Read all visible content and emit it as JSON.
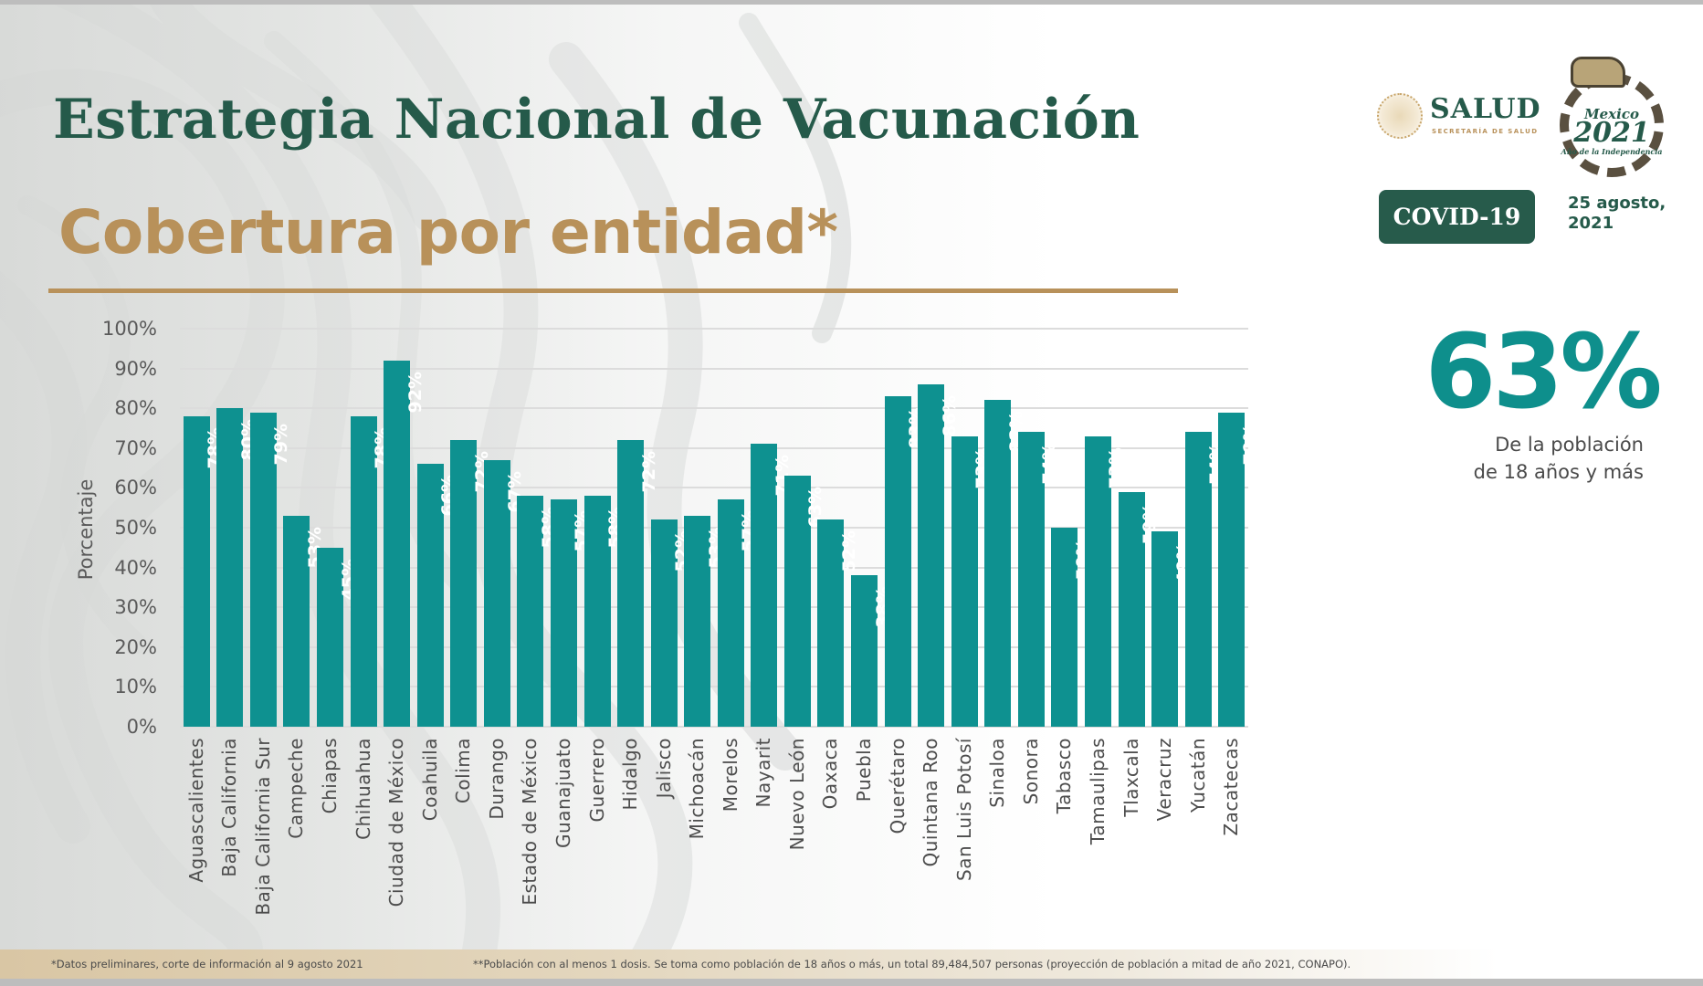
{
  "header": {
    "title": "Estrategia Nacional de Vacunación",
    "subtitle": "Cobertura por entidad*"
  },
  "logos": {
    "salud_name": "SALUD",
    "salud_sub": "SECRETARÍA DE SALUD",
    "badge_2021_top": "Mexico",
    "badge_2021_year": "2021",
    "badge_2021_bottom": "Año de la Independencia"
  },
  "badge": {
    "label": "COVID-19"
  },
  "date": {
    "line1": "25 agosto,",
    "line2": "2021"
  },
  "kpi": {
    "value": "63%",
    "caption_line1": "De la población",
    "caption_line2": "de 18 años y más"
  },
  "colors": {
    "bar": "#0e9190",
    "title_green": "#255a4a",
    "accent_gold": "#b8915a",
    "kpi_teal": "#0e8f8c"
  },
  "footer": {
    "note1": "*Datos preliminares, corte de información al 9 agosto  2021",
    "note2": "**Población con al menos 1 dosis. Se toma como población de 18 años o más, un total 89,484,507 personas (proyección de población a mitad de año 2021, CONAPO)."
  },
  "chart_data": {
    "type": "bar",
    "title": "Cobertura por entidad*",
    "xlabel": "",
    "ylabel": "Porcentaje",
    "ylim": [
      0,
      100
    ],
    "yticks": [
      "0%",
      "10%",
      "20%",
      "30%",
      "40%",
      "50%",
      "60%",
      "70%",
      "80%",
      "90%",
      "100%"
    ],
    "grid": true,
    "legend": null,
    "categories": [
      "Aguascalientes",
      "Baja California",
      "Baja California Sur",
      "Campeche",
      "Chiapas",
      "Chihuahua",
      "Ciudad de México",
      "Coahuila",
      "Colima",
      "Durango",
      "Estado de México",
      "Guanajuato",
      "Guerrero",
      "Hidalgo",
      "Jalisco",
      "Michoacán",
      "Morelos",
      "Nayarit",
      "Nuevo León",
      "Oaxaca",
      "Puebla",
      "Querétaro",
      "Quintana Roo",
      "San Luis Potosí",
      "Sinaloa",
      "Sonora",
      "Tabasco",
      "Tamaulipas",
      "Tlaxcala",
      "Veracruz",
      "Yucatán",
      "Zacatecas"
    ],
    "values": [
      78,
      80,
      79,
      53,
      45,
      78,
      92,
      66,
      72,
      67,
      58,
      57,
      58,
      72,
      52,
      53,
      57,
      71,
      63,
      52,
      38,
      83,
      86,
      73,
      82,
      74,
      50,
      73,
      59,
      49,
      74,
      79
    ],
    "value_labels": [
      "78%",
      "80%",
      "79%",
      "53%",
      "45%",
      "78%",
      "92%",
      "66%",
      "72%",
      "67%",
      "58%",
      "57%",
      "58%",
      "72%",
      "52%",
      "53%",
      "57%",
      "71%",
      "63%",
      "52%",
      "38%",
      "83%",
      "86%",
      "73%",
      "82%",
      "74%",
      "50%",
      "73%",
      "59%",
      "49%",
      "74%",
      "79%"
    ]
  }
}
